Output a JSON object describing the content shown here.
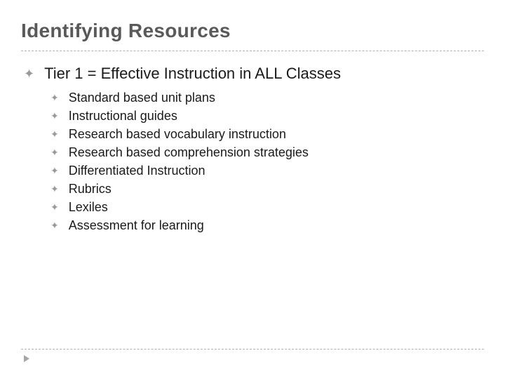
{
  "title": "Identifying Resources",
  "bullet_glyph": "✦",
  "level1": {
    "text": "Tier 1 = Effective Instruction in ALL Classes"
  },
  "level2_items": [
    "Standard based unit plans",
    "Instructional guides",
    "Research based vocabulary instruction",
    "Research based comprehension strategies",
    "Differentiated Instruction",
    "Rubrics",
    "Lexiles",
    "Assessment for learning"
  ],
  "colors": {
    "title_color": "#595959",
    "text_color": "#1a1a1a",
    "bullet_color": "#999999",
    "divider_color": "#b0b0b0",
    "arrow_color": "#a6a6a6",
    "background": "#ffffff"
  },
  "typography": {
    "title_fontsize": 28,
    "level1_fontsize": 22,
    "level2_fontsize": 18,
    "font_family": "Arial"
  }
}
